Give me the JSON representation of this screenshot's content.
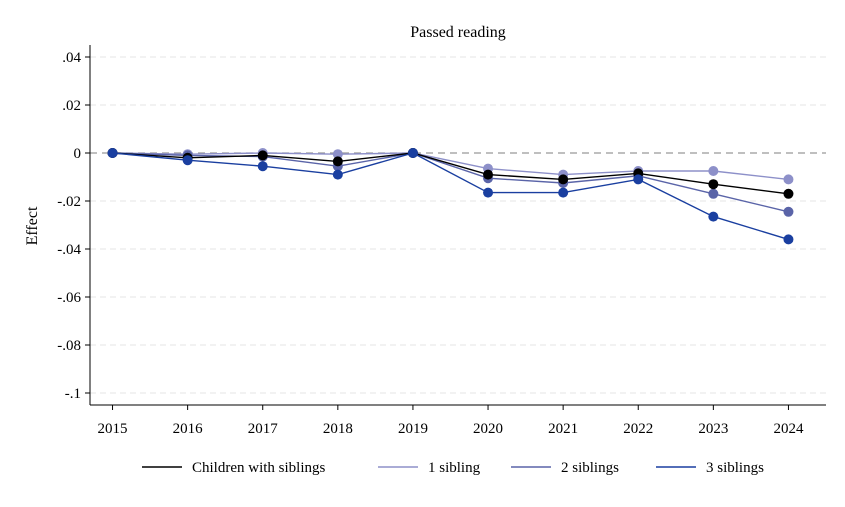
{
  "chart_data": {
    "type": "line",
    "title": "Passed reading",
    "xlabel": "",
    "ylabel": "Effect",
    "x": [
      2015,
      2016,
      2017,
      2018,
      2019,
      2020,
      2021,
      2022,
      2023,
      2024
    ],
    "x_tick_labels": [
      "2015",
      "2016",
      "2017",
      "2018",
      "2019",
      "2020",
      "2021",
      "2022",
      "2023",
      "2024"
    ],
    "xlim": [
      2014.7,
      2024.5
    ],
    "ylim": [
      -0.105,
      0.045
    ],
    "y_ticks": [
      0.04,
      0.02,
      0,
      -0.02,
      -0.04,
      -0.06,
      -0.08,
      -0.1
    ],
    "y_tick_labels": [
      ".04",
      ".02",
      "0",
      "-.02",
      "-.04",
      "-.06",
      "-.08",
      "-.1"
    ],
    "grid": true,
    "reference_line": 0,
    "legend_position": "bottom",
    "series": [
      {
        "name": "Children with siblings",
        "color": "#000000",
        "values": [
          0,
          -0.002,
          -0.001,
          -0.0035,
          0,
          -0.009,
          -0.011,
          -0.0085,
          -0.013,
          -0.017
        ]
      },
      {
        "name": "1 sibling",
        "color": "#8d90c9",
        "values": [
          0,
          -0.0005,
          0,
          -0.0005,
          0,
          -0.0065,
          -0.009,
          -0.0075,
          -0.0075,
          -0.011
        ]
      },
      {
        "name": "2 siblings",
        "color": "#5a64a8",
        "values": [
          0,
          -0.001,
          -0.0015,
          -0.0055,
          0,
          -0.0105,
          -0.0125,
          -0.0095,
          -0.017,
          -0.0245
        ]
      },
      {
        "name": "3 siblings",
        "color": "#1a3fa0",
        "values": [
          0,
          -0.003,
          -0.0055,
          -0.009,
          0,
          -0.0165,
          -0.0165,
          -0.011,
          -0.0265,
          -0.036
        ]
      }
    ]
  }
}
